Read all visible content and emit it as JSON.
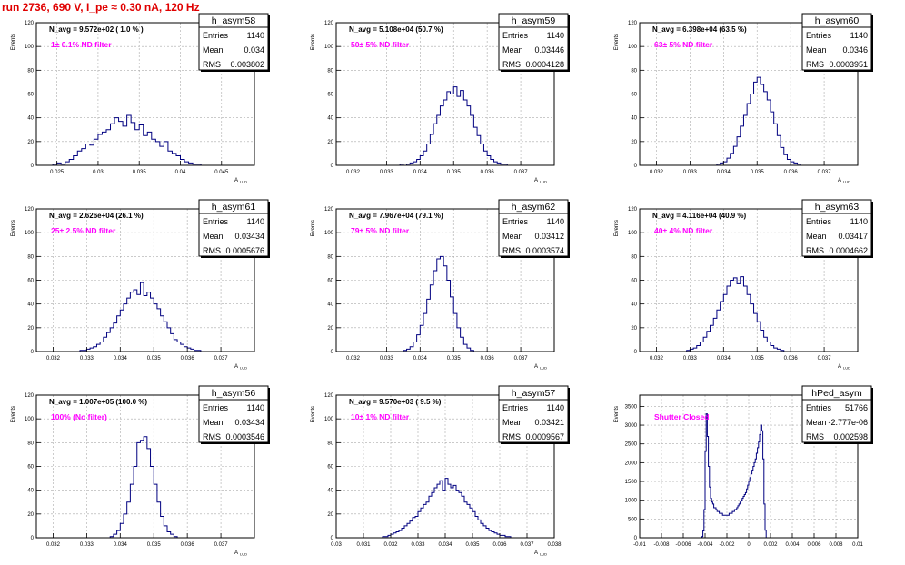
{
  "run_title": "run 2736,   690 V, I_pe ≈ 0.30 nA, 120 Hz",
  "colors": {
    "hist": "#000080",
    "annotation_bold": "#000000",
    "filter_label": "#ff00ff",
    "title": "#e00000",
    "grid": "#aaaaaa"
  },
  "chart_data": [
    {
      "type": "bar",
      "name": "h_asym58",
      "annotation": "N_avg = 9.572e+02 ( 1.0 % )",
      "filter_label": "1± 0.1% ND filter",
      "stats": {
        "entries_label": "Entries",
        "entries": "1140",
        "mean_label": "Mean",
        "mean": "0.034",
        "rms_label": "RMS",
        "rms": "0.003802"
      },
      "xlabel": "A_LUD",
      "ylabel": "Events",
      "xlim": [
        0.0225,
        0.049
      ],
      "ylim": [
        0,
        120
      ],
      "xticks": [
        "0.025",
        "0.03",
        "0.035",
        "0.04",
        "0.045"
      ],
      "xtick_values": [
        0.025,
        0.03,
        0.035,
        0.04,
        0.045
      ],
      "yticks": [
        "0",
        "20",
        "40",
        "60",
        "80",
        "100",
        "120"
      ],
      "ytick_values": [
        0,
        20,
        40,
        60,
        80,
        100,
        120
      ],
      "x_start": 0.0225,
      "bin_width": 0.0005,
      "values": [
        0,
        0,
        0,
        0,
        1,
        2,
        1,
        3,
        5,
        8,
        12,
        14,
        18,
        17,
        22,
        26,
        28,
        30,
        35,
        40,
        37,
        33,
        42,
        36,
        30,
        34,
        25,
        28,
        22,
        20,
        16,
        20,
        12,
        10,
        8,
        5,
        3,
        2,
        1,
        1,
        0,
        0,
        0,
        0,
        0,
        0,
        0,
        0,
        0,
        0,
        0,
        0,
        0
      ]
    },
    {
      "type": "bar",
      "name": "h_asym59",
      "annotation": "N_avg = 5.108e+04 (50.7 %)",
      "filter_label": "50± 5% ND filter",
      "stats": {
        "entries_label": "Entries",
        "entries": "1140",
        "mean_label": "Mean",
        "mean": "0.03446",
        "rms_label": "RMS",
        "rms": "0.0004128"
      },
      "xlabel": "A_LUD",
      "ylabel": "Events",
      "xlim": [
        0.0315,
        0.038
      ],
      "ylim": [
        0,
        120
      ],
      "xticks": [
        "0.032",
        "0.033",
        "0.034",
        "0.035",
        "0.036",
        "0.037"
      ],
      "xtick_values": [
        0.032,
        0.033,
        0.034,
        0.035,
        0.036,
        0.037
      ],
      "yticks": [
        "0",
        "20",
        "40",
        "60",
        "80",
        "100",
        "120"
      ],
      "ytick_values": [
        0,
        20,
        40,
        60,
        80,
        100,
        120
      ],
      "x_start": 0.0315,
      "bin_width": 0.0001,
      "values": [
        0,
        0,
        0,
        0,
        0,
        0,
        0,
        0,
        0,
        0,
        0,
        0,
        0,
        0,
        0,
        0,
        0,
        0,
        0,
        1,
        0,
        1,
        2,
        3,
        5,
        8,
        12,
        18,
        26,
        35,
        42,
        50,
        55,
        62,
        60,
        66,
        58,
        63,
        55,
        50,
        42,
        32,
        25,
        18,
        12,
        8,
        5,
        3,
        2,
        1,
        1,
        0,
        0,
        0,
        0,
        0,
        0,
        0,
        0,
        0,
        0,
        0,
        0,
        0,
        0
      ]
    },
    {
      "type": "bar",
      "name": "h_asym60",
      "annotation": "N_avg = 6.398e+04 (63.5 %)",
      "filter_label": "63± 5% ND filter",
      "stats": {
        "entries_label": "Entries",
        "entries": "1140",
        "mean_label": "Mean",
        "mean": "0.0346",
        "rms_label": "RMS",
        "rms": "0.0003951"
      },
      "xlabel": "A_LUD",
      "ylabel": "Events",
      "xlim": [
        0.0315,
        0.038
      ],
      "ylim": [
        0,
        120
      ],
      "xticks": [
        "0.032",
        "0.033",
        "0.034",
        "0.035",
        "0.036",
        "0.037"
      ],
      "xtick_values": [
        0.032,
        0.033,
        0.034,
        0.035,
        0.036,
        0.037
      ],
      "yticks": [
        "0",
        "20",
        "40",
        "60",
        "80",
        "100",
        "120"
      ],
      "ytick_values": [
        0,
        20,
        40,
        60,
        80,
        100,
        120
      ],
      "x_start": 0.0315,
      "bin_width": 0.0001,
      "values": [
        0,
        0,
        0,
        0,
        0,
        0,
        0,
        0,
        0,
        0,
        0,
        0,
        0,
        0,
        0,
        0,
        0,
        0,
        0,
        0,
        0,
        0,
        0,
        1,
        2,
        3,
        6,
        10,
        16,
        24,
        33,
        42,
        52,
        60,
        70,
        74,
        68,
        62,
        55,
        45,
        35,
        25,
        15,
        9,
        5,
        3,
        2,
        1,
        0,
        0,
        0,
        0,
        0,
        0,
        0,
        0,
        0,
        0,
        0,
        0,
        0,
        0,
        0,
        0,
        0
      ]
    },
    {
      "type": "bar",
      "name": "h_asym61",
      "annotation": "N_avg = 2.626e+04 (26.1 %)",
      "filter_label": "25± 2.5% ND filter",
      "stats": {
        "entries_label": "Entries",
        "entries": "1140",
        "mean_label": "Mean",
        "mean": "0.03434",
        "rms_label": "RMS",
        "rms": "0.0005676"
      },
      "xlabel": "A_LUD",
      "ylabel": "Events",
      "xlim": [
        0.0315,
        0.038
      ],
      "ylim": [
        0,
        120
      ],
      "xticks": [
        "0.032",
        "0.033",
        "0.034",
        "0.035",
        "0.036",
        "0.037"
      ],
      "xtick_values": [
        0.032,
        0.033,
        0.034,
        0.035,
        0.036,
        0.037
      ],
      "yticks": [
        "0",
        "20",
        "40",
        "60",
        "80",
        "100",
        "120"
      ],
      "ytick_values": [
        0,
        20,
        40,
        60,
        80,
        100,
        120
      ],
      "x_start": 0.0315,
      "bin_width": 0.0001,
      "values": [
        0,
        0,
        0,
        0,
        0,
        0,
        0,
        0,
        0,
        0,
        0,
        0,
        0,
        1,
        1,
        2,
        3,
        4,
        6,
        8,
        12,
        16,
        20,
        24,
        30,
        35,
        40,
        45,
        50,
        52,
        48,
        58,
        47,
        50,
        45,
        40,
        36,
        30,
        25,
        20,
        15,
        10,
        8,
        6,
        4,
        3,
        2,
        1,
        1,
        0,
        0,
        0,
        0,
        0,
        0,
        0,
        0,
        0,
        0,
        0,
        0,
        0,
        0,
        0,
        0
      ]
    },
    {
      "type": "bar",
      "name": "h_asym62",
      "annotation": "N_avg = 7.967e+04 (79.1 %)",
      "filter_label": "79± 5% ND filter",
      "stats": {
        "entries_label": "Entries",
        "entries": "1140",
        "mean_label": "Mean",
        "mean": "0.03412",
        "rms_label": "RMS",
        "rms": "0.0003574"
      },
      "xlabel": "A_LUD",
      "ylabel": "Events",
      "xlim": [
        0.0315,
        0.038
      ],
      "ylim": [
        0,
        120
      ],
      "xticks": [
        "0.032",
        "0.033",
        "0.034",
        "0.035",
        "0.036",
        "0.037"
      ],
      "xtick_values": [
        0.032,
        0.033,
        0.034,
        0.035,
        0.036,
        0.037
      ],
      "yticks": [
        "0",
        "20",
        "40",
        "60",
        "80",
        "100",
        "120"
      ],
      "ytick_values": [
        0,
        20,
        40,
        60,
        80,
        100,
        120
      ],
      "x_start": 0.0315,
      "bin_width": 0.0001,
      "values": [
        0,
        0,
        0,
        0,
        0,
        0,
        0,
        0,
        0,
        0,
        0,
        0,
        0,
        0,
        0,
        0,
        0,
        0,
        0,
        0,
        1,
        2,
        4,
        8,
        14,
        22,
        32,
        44,
        56,
        68,
        78,
        80,
        72,
        60,
        46,
        32,
        20,
        12,
        6,
        3,
        1,
        0,
        0,
        0,
        0,
        0,
        0,
        0,
        0,
        0,
        0,
        0,
        0,
        0,
        0,
        0,
        0,
        0,
        0,
        0,
        0,
        0,
        0,
        0,
        0
      ]
    },
    {
      "type": "bar",
      "name": "h_asym63",
      "annotation": "N_avg = 4.116e+04 (40.9 %)",
      "filter_label": "40± 4% ND filter",
      "stats": {
        "entries_label": "Entries",
        "entries": "1140",
        "mean_label": "Mean",
        "mean": "0.03417",
        "rms_label": "RMS",
        "rms": "0.0004662"
      },
      "xlabel": "A_LUD",
      "ylabel": "Events",
      "xlim": [
        0.0315,
        0.038
      ],
      "ylim": [
        0,
        120
      ],
      "xticks": [
        "0.032",
        "0.033",
        "0.034",
        "0.035",
        "0.036",
        "0.037"
      ],
      "xtick_values": [
        0.032,
        0.033,
        0.034,
        0.035,
        0.036,
        0.037
      ],
      "yticks": [
        "0",
        "20",
        "40",
        "60",
        "80",
        "100",
        "120"
      ],
      "ytick_values": [
        0,
        20,
        40,
        60,
        80,
        100,
        120
      ],
      "x_start": 0.0315,
      "bin_width": 0.0001,
      "values": [
        0,
        0,
        0,
        0,
        0,
        0,
        0,
        0,
        0,
        0,
        0,
        0,
        0,
        0,
        1,
        2,
        3,
        5,
        8,
        12,
        17,
        22,
        28,
        35,
        42,
        48,
        55,
        60,
        62,
        57,
        63,
        55,
        48,
        40,
        32,
        25,
        18,
        12,
        8,
        5,
        3,
        2,
        1,
        0,
        0,
        0,
        0,
        0,
        0,
        0,
        0,
        0,
        0,
        0,
        0,
        0,
        0,
        0,
        0,
        0,
        0,
        0,
        0,
        0,
        0
      ]
    },
    {
      "type": "bar",
      "name": "h_asym56",
      "annotation": "N_avg = 1.007e+05 (100.0 %)",
      "filter_label": "100% (No filter)",
      "stats": {
        "entries_label": "Entries",
        "entries": "1140",
        "mean_label": "Mean",
        "mean": "0.03434",
        "rms_label": "RMS",
        "rms": "0.0003546"
      },
      "xlabel": "A_LUD",
      "ylabel": "Events",
      "xlim": [
        0.0315,
        0.038
      ],
      "ylim": [
        0,
        120
      ],
      "xticks": [
        "0.032",
        "0.033",
        "0.034",
        "0.035",
        "0.036",
        "0.037"
      ],
      "xtick_values": [
        0.032,
        0.033,
        0.034,
        0.035,
        0.036,
        0.037
      ],
      "yticks": [
        "0",
        "20",
        "40",
        "60",
        "80",
        "100",
        "120"
      ],
      "ytick_values": [
        0,
        20,
        40,
        60,
        80,
        100,
        120
      ],
      "x_start": 0.0315,
      "bin_width": 0.0001,
      "values": [
        0,
        0,
        0,
        0,
        0,
        0,
        0,
        0,
        0,
        0,
        0,
        0,
        0,
        0,
        0,
        0,
        0,
        0,
        0,
        0,
        0,
        0,
        1,
        3,
        6,
        12,
        20,
        30,
        45,
        60,
        80,
        82,
        85,
        75,
        60,
        45,
        30,
        18,
        10,
        5,
        3,
        1,
        0,
        0,
        0,
        0,
        0,
        0,
        0,
        0,
        0,
        0,
        0,
        0,
        0,
        0,
        0,
        0,
        0,
        0,
        0,
        0,
        0,
        0,
        0
      ]
    },
    {
      "type": "bar",
      "name": "h_asym57",
      "annotation": "N_avg = 9.570e+03 ( 9.5 %)",
      "filter_label": "10± 1% ND filter",
      "stats": {
        "entries_label": "Entries",
        "entries": "1140",
        "mean_label": "Mean",
        "mean": "0.03421",
        "rms_label": "RMS",
        "rms": "0.0009567"
      },
      "xlabel": "A_LUD",
      "ylabel": "Events",
      "xlim": [
        0.03,
        0.038
      ],
      "ylim": [
        0,
        120
      ],
      "xticks": [
        "0.03",
        "0.031",
        "0.032",
        "0.033",
        "0.034",
        "0.035",
        "0.036",
        "0.037",
        "0.038"
      ],
      "xtick_values": [
        0.03,
        0.031,
        0.032,
        0.033,
        0.034,
        0.035,
        0.036,
        0.037,
        0.038
      ],
      "yticks": [
        "0",
        "20",
        "40",
        "60",
        "80",
        "100",
        "120"
      ],
      "ytick_values": [
        0,
        20,
        40,
        60,
        80,
        100,
        120
      ],
      "x_start": 0.03,
      "bin_width": 0.0001,
      "values": [
        0,
        0,
        0,
        0,
        0,
        0,
        0,
        0,
        0,
        0,
        0,
        0,
        0,
        0,
        0,
        0,
        0,
        1,
        1,
        2,
        3,
        4,
        5,
        6,
        8,
        10,
        12,
        14,
        17,
        18,
        22,
        25,
        28,
        30,
        35,
        38,
        42,
        45,
        48,
        40,
        50,
        45,
        42,
        44,
        40,
        38,
        35,
        30,
        28,
        25,
        22,
        18,
        15,
        12,
        10,
        8,
        6,
        5,
        4,
        3,
        2,
        2,
        1,
        1,
        0,
        0,
        0,
        0,
        0,
        0,
        0,
        0,
        0,
        0,
        0,
        0,
        0,
        0,
        0,
        0,
        0
      ]
    },
    {
      "type": "bar",
      "name": "hPed_asym",
      "annotation": "",
      "filter_label": "Shutter Closed",
      "stats": {
        "entries_label": "Entries",
        "entries": "51766",
        "mean_label": "Mean",
        "mean": "-2.777e-06",
        "rms_label": "RMS",
        "rms": "0.002598"
      },
      "xlabel": "",
      "ylabel": "Events",
      "xlim": [
        -0.01,
        0.01
      ],
      "ylim": [
        0,
        3800
      ],
      "xticks": [
        "-0.01",
        "-0.008",
        "-0.006",
        "-0.004",
        "-0.002",
        "0",
        "0.002",
        "0.004",
        "0.006",
        "0.008",
        "0.01"
      ],
      "xtick_values": [
        -0.01,
        -0.008,
        -0.006,
        -0.004,
        -0.002,
        0,
        0.002,
        0.004,
        0.006,
        0.008,
        0.01
      ],
      "yticks": [
        "0",
        "500",
        "1000",
        "1500",
        "2000",
        "2500",
        "3000",
        "3500"
      ],
      "ytick_values": [
        0,
        500,
        1000,
        1500,
        2000,
        2500,
        3000,
        3500
      ],
      "x_start": -0.0045,
      "bin_width": 0.0001,
      "values": [
        0,
        0,
        30,
        180,
        750,
        2300,
        3300,
        2700,
        1900,
        1350,
        1050,
        950,
        900,
        800,
        800,
        750,
        700,
        700,
        650,
        650,
        650,
        600,
        600,
        600,
        600,
        600,
        600,
        650,
        650,
        650,
        700,
        700,
        750,
        750,
        800,
        850,
        900,
        950,
        1000,
        1050,
        1100,
        1150,
        1200,
        1300,
        1400,
        1500,
        1600,
        1700,
        1800,
        1900,
        2000,
        2100,
        2250,
        2400,
        2550,
        2750,
        3000,
        2850,
        2100,
        900,
        200,
        0,
        0,
        0,
        0,
        0,
        0,
        0,
        0,
        0,
        0,
        0,
        0,
        0,
        0,
        0,
        0,
        0,
        0,
        0,
        0,
        0,
        0,
        0,
        0,
        0,
        0,
        0,
        0,
        0
      ]
    }
  ]
}
